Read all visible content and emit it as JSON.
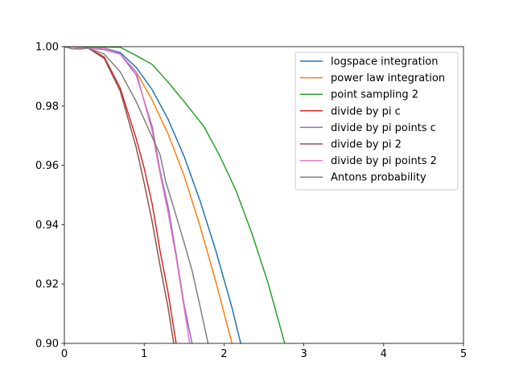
{
  "chart_data": {
    "type": "line",
    "title": "",
    "xlabel": "",
    "ylabel": "",
    "xlim": [
      0,
      5
    ],
    "ylim": [
      0.9,
      1.0
    ],
    "xticks": [
      0,
      1,
      2,
      3,
      4,
      5
    ],
    "xtick_labels": [
      "0",
      "1",
      "2",
      "3",
      "4",
      "5"
    ],
    "yticks": [
      0.9,
      0.92,
      0.94,
      0.96,
      0.98,
      1.0
    ],
    "ytick_labels": [
      "0.90",
      "0.92",
      "0.94",
      "0.96",
      "0.98",
      "1.00"
    ],
    "grid": false,
    "legend_position": "top-right",
    "series": [
      {
        "name": "logspace integration",
        "color": "#1f77b4",
        "points": [
          [
            0.0,
            1.0
          ],
          [
            0.3,
            1.0
          ],
          [
            0.5,
            0.9995
          ],
          [
            0.7,
            0.998
          ],
          [
            0.9,
            0.993
          ],
          [
            1.1,
            0.9855
          ],
          [
            1.3,
            0.9755
          ],
          [
            1.5,
            0.963
          ],
          [
            1.7,
            0.948
          ],
          [
            1.9,
            0.931
          ],
          [
            2.1,
            0.912
          ],
          [
            2.2,
            0.901
          ],
          [
            2.25,
            0.895
          ]
        ]
      },
      {
        "name": "power law integration",
        "color": "#ff7f0e",
        "points": [
          [
            0.0,
            1.0
          ],
          [
            0.3,
            1.0
          ],
          [
            0.5,
            0.9995
          ],
          [
            0.7,
            0.9975
          ],
          [
            0.9,
            0.9915
          ],
          [
            1.1,
            0.982
          ],
          [
            1.3,
            0.9705
          ],
          [
            1.5,
            0.9565
          ],
          [
            1.7,
            0.9395
          ],
          [
            1.9,
            0.9205
          ],
          [
            2.1,
            0.9
          ],
          [
            2.2,
            0.89
          ]
        ]
      },
      {
        "name": "point sampling 2",
        "color": "#2ca02c",
        "points": [
          [
            0.0,
            1.0
          ],
          [
            0.7,
            0.9998
          ],
          [
            0.9,
            0.997
          ],
          [
            1.1,
            0.994
          ],
          [
            1.3,
            0.988
          ],
          [
            1.5,
            0.9815
          ],
          [
            1.75,
            0.973
          ],
          [
            1.95,
            0.963
          ],
          [
            2.15,
            0.9515
          ],
          [
            2.35,
            0.937
          ],
          [
            2.55,
            0.9205
          ],
          [
            2.75,
            0.901
          ],
          [
            2.8,
            0.896
          ]
        ]
      },
      {
        "name": "divide by pi c",
        "color": "#d62728",
        "points": [
          [
            0.0,
            1.0
          ],
          [
            0.3,
            0.9995
          ],
          [
            0.5,
            0.9965
          ],
          [
            0.7,
            0.986
          ],
          [
            0.9,
            0.969
          ],
          [
            1.0,
            0.959
          ],
          [
            1.1,
            0.947
          ],
          [
            1.2,
            0.931
          ],
          [
            1.3,
            0.917
          ],
          [
            1.4,
            0.9
          ],
          [
            1.45,
            0.893
          ]
        ]
      },
      {
        "name": "divide by pi points c",
        "color": "#9467bd",
        "points": [
          [
            0.0,
            1.0
          ],
          [
            0.3,
            0.9995
          ],
          [
            0.5,
            0.999
          ],
          [
            0.7,
            0.9975
          ],
          [
            0.9,
            0.9905
          ],
          [
            1.1,
            0.973
          ],
          [
            1.2,
            0.958
          ],
          [
            1.3,
            0.946
          ],
          [
            1.4,
            0.93
          ],
          [
            1.5,
            0.913
          ],
          [
            1.6,
            0.9
          ],
          [
            1.65,
            0.894
          ]
        ]
      },
      {
        "name": "divide by pi 2",
        "color": "#8c564b",
        "points": [
          [
            0.0,
            1.0
          ],
          [
            0.3,
            0.9995
          ],
          [
            0.5,
            0.996
          ],
          [
            0.7,
            0.985
          ],
          [
            0.9,
            0.966
          ],
          [
            1.0,
            0.954
          ],
          [
            1.1,
            0.941
          ],
          [
            1.2,
            0.926
          ],
          [
            1.3,
            0.912
          ],
          [
            1.37,
            0.9
          ],
          [
            1.42,
            0.893
          ]
        ]
      },
      {
        "name": "divide by pi points 2",
        "color": "#e377c2",
        "points": [
          [
            0.0,
            1.0
          ],
          [
            0.3,
            0.9995
          ],
          [
            0.5,
            0.9995
          ],
          [
            0.7,
            0.9975
          ],
          [
            0.9,
            0.9915
          ],
          [
            1.1,
            0.9715
          ],
          [
            1.2,
            0.957
          ],
          [
            1.3,
            0.944
          ],
          [
            1.4,
            0.929
          ],
          [
            1.5,
            0.912
          ],
          [
            1.57,
            0.9
          ],
          [
            1.62,
            0.894
          ]
        ]
      },
      {
        "name": "Antons probability",
        "color": "#7f7f7f",
        "points": [
          [
            0.0,
            1.0
          ],
          [
            0.1,
            0.9992
          ],
          [
            0.15,
            0.9993
          ],
          [
            0.2,
            0.9992
          ],
          [
            0.3,
            0.9995
          ],
          [
            0.5,
            0.9975
          ],
          [
            0.6,
            0.9945
          ],
          [
            0.7,
            0.9915
          ],
          [
            0.8,
            0.9865
          ],
          [
            0.9,
            0.9815
          ],
          [
            1.0,
            0.9755
          ],
          [
            1.1,
            0.9695
          ],
          [
            1.2,
            0.9635
          ],
          [
            1.27,
            0.9545
          ],
          [
            1.35,
            0.9475
          ],
          [
            1.4,
            0.943
          ],
          [
            1.5,
            0.934
          ],
          [
            1.6,
            0.9245
          ],
          [
            1.7,
            0.9125
          ],
          [
            1.8,
            0.9
          ],
          [
            1.87,
            0.893
          ]
        ]
      }
    ]
  }
}
